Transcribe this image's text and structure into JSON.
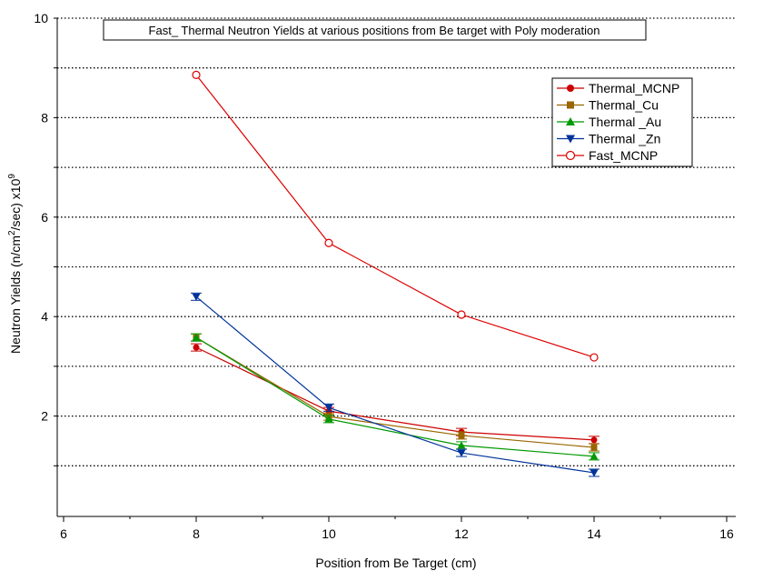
{
  "chart_data": {
    "type": "line",
    "title": "Fast_ Thermal Neutron Yields at various positions from Be target with Poly moderation",
    "xlabel": "Position from Be Target (cm)",
    "ylabel_parts": [
      "Neutron Yields (n/cm",
      "2",
      "/sec)  x10",
      "9"
    ],
    "xlim": [
      5.9,
      16
    ],
    "ylim": [
      0,
      10
    ],
    "xticks": [
      6,
      8,
      10,
      12,
      14,
      16
    ],
    "yticks": [
      2,
      4,
      6,
      8,
      10
    ],
    "grid": "horizontal dotted, every 1 unit",
    "legend_position": "top-right",
    "x": [
      8,
      10,
      12,
      14
    ],
    "series": [
      {
        "name": "Thermal_MCNP",
        "color": "#cc0000",
        "marker": "circle-filled",
        "values": [
          3.38,
          2.1,
          1.68,
          1.52
        ]
      },
      {
        "name": "Thermal_Cu",
        "color": "#996600",
        "marker": "square",
        "values": [
          3.58,
          1.99,
          1.61,
          1.37
        ]
      },
      {
        "name": "Thermal _Au",
        "color": "#009900",
        "marker": "triangle-up",
        "values": [
          3.58,
          1.94,
          1.41,
          1.19
        ]
      },
      {
        "name": "Thermal _Zn",
        "color": "#003399",
        "marker": "triangle-down",
        "values": [
          4.4,
          2.17,
          1.26,
          0.86
        ]
      },
      {
        "name": "Fast_MCNP",
        "color": "#dd0000",
        "marker": "circle-open",
        "values": [
          8.86,
          5.48,
          4.04,
          3.18
        ]
      }
    ]
  }
}
